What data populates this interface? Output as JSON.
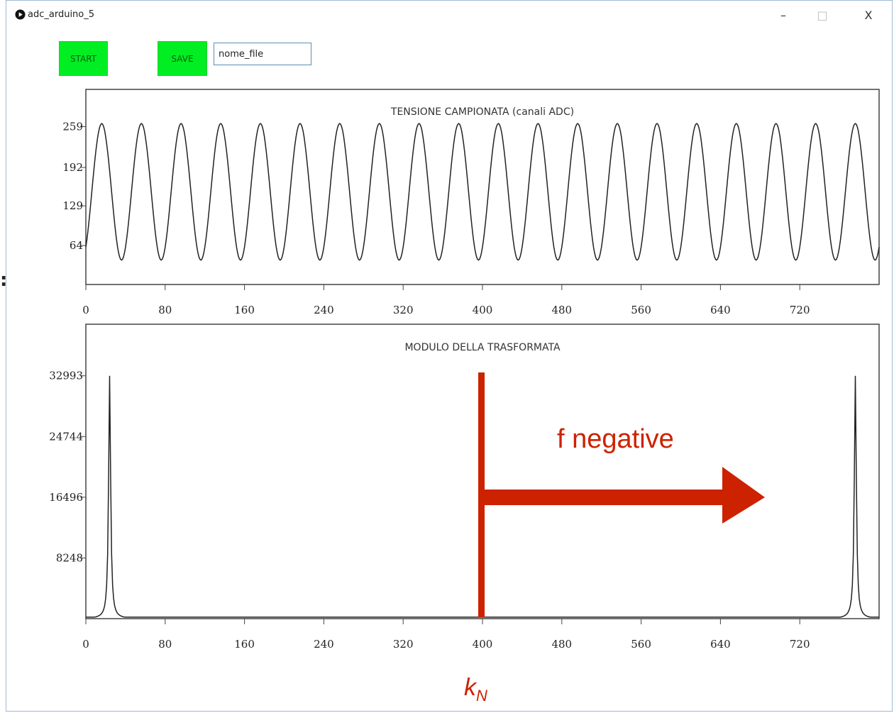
{
  "window": {
    "title": "adc_arduino_5",
    "minimize_glyph": "–",
    "maximize_glyph": "□",
    "close_glyph": "X"
  },
  "toolbar": {
    "start_label": "START",
    "save_label": "SAVE",
    "filename_value": "nome_file"
  },
  "annotations": {
    "f_negative": "f negative",
    "kN_base": "k",
    "kN_sub": "N",
    "kN_position": 400,
    "color": "#cc2200"
  },
  "colors": {
    "button_green": "#00ee22",
    "annotation_red": "#cc2200",
    "plot_line": "#222222"
  },
  "chart_data": [
    {
      "type": "line",
      "title": "TENSIONE CAMPIONATA (canali ADC)",
      "x_ticks": [
        0,
        80,
        160,
        240,
        320,
        400,
        480,
        560,
        640,
        720
      ],
      "y_ticks": [
        64,
        129,
        192,
        259
      ],
      "xlim": [
        0,
        800
      ],
      "ylim": [
        0,
        320
      ],
      "series": [
        {
          "kind": "sine",
          "offset": 152,
          "amplitude": 112,
          "periods": 20,
          "points": 800
        }
      ]
    },
    {
      "type": "line",
      "title": "MODULO DELLA TRASFORMATA",
      "x_ticks": [
        0,
        80,
        160,
        240,
        320,
        400,
        480,
        560,
        640,
        720
      ],
      "y_ticks": [
        8248,
        16496,
        24744,
        32993
      ],
      "xlim": [
        0,
        800
      ],
      "ylim": [
        0,
        40000
      ],
      "series": [
        {
          "kind": "spectrum",
          "peaks": [
            [
              24,
              32993
            ],
            [
              776,
              32993
            ]
          ],
          "baseline": 0,
          "points": 800
        }
      ]
    }
  ]
}
